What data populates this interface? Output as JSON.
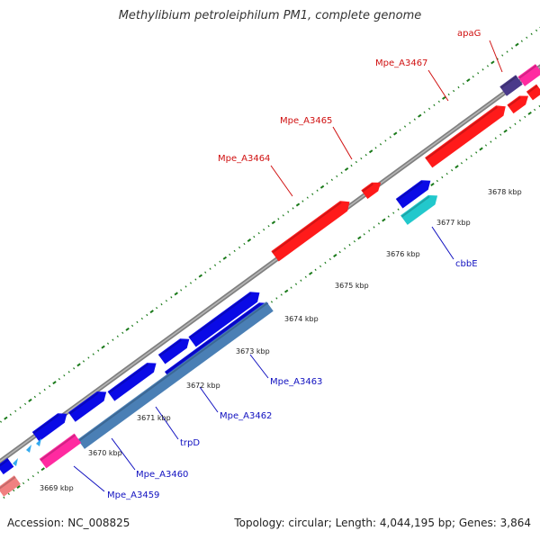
{
  "title": "Methylibium petroleiphilum PM1, complete genome",
  "accession": "Accession: NC_008825",
  "topology": "Topology: circular; Length: 4,044,195 bp; Genes: 3,864",
  "colors": {
    "red": "#ff1a1a",
    "blue": "#0a0ae6",
    "steelblue": "#4a7fb5",
    "cyan": "#22c8cc",
    "magenta": "#ff2aa0",
    "navy": "#4a3a8a",
    "salmon": "#f08080",
    "lightblue": "#33aaee",
    "tick": "#1a7a1a",
    "label_red": "#d01010",
    "label_blue": "#1010c0"
  },
  "kbp_ticks": [
    "3669 kbp",
    "3670 kbp",
    "3671 kbp",
    "3672 kbp",
    "3673 kbp",
    "3674 kbp",
    "3675 kbp",
    "3676 kbp",
    "3677 kbp",
    "3678 kbp"
  ],
  "gene_labels": [
    "apaG",
    "Mpe_A3467",
    "Mpe_A3465",
    "Mpe_A3464",
    "cbbE",
    "Mpe_A3463",
    "Mpe_A3462",
    "trpD",
    "Mpe_A3460",
    "Mpe_A3459"
  ]
}
